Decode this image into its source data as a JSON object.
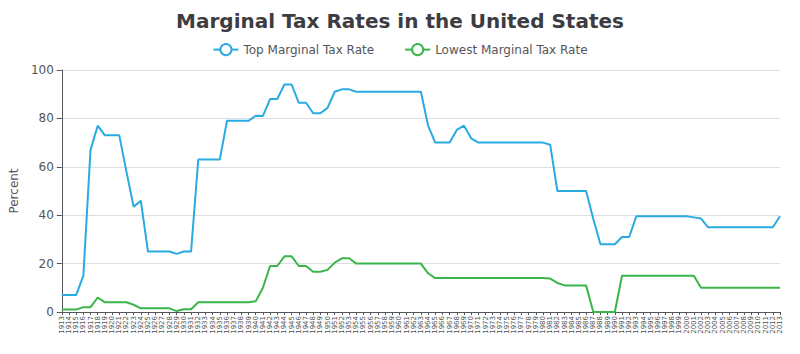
{
  "chart_data": {
    "type": "line",
    "title": "Marginal Tax Rates in the United States",
    "y_label": "Percent",
    "x": [
      1913,
      1914,
      1915,
      1916,
      1917,
      1918,
      1919,
      1920,
      1921,
      1922,
      1923,
      1924,
      1925,
      1926,
      1927,
      1928,
      1929,
      1930,
      1931,
      1932,
      1933,
      1934,
      1935,
      1936,
      1937,
      1938,
      1939,
      1940,
      1941,
      1942,
      1943,
      1944,
      1945,
      1946,
      1947,
      1948,
      1949,
      1950,
      1951,
      1952,
      1953,
      1954,
      1955,
      1956,
      1957,
      1958,
      1959,
      1960,
      1961,
      1962,
      1963,
      1964,
      1965,
      1966,
      1967,
      1968,
      1969,
      1970,
      1971,
      1972,
      1973,
      1974,
      1975,
      1976,
      1977,
      1978,
      1979,
      1980,
      1981,
      1982,
      1983,
      1984,
      1985,
      1986,
      1987,
      1988,
      1989,
      1990,
      1991,
      1992,
      1993,
      1994,
      1995,
      1996,
      1997,
      1998,
      1999,
      2000,
      2001,
      2002,
      2003,
      2004,
      2005,
      2006,
      2007,
      2008,
      2009,
      2010,
      2011,
      2012,
      2013
    ],
    "series": [
      {
        "name": "Top Marginal Tax Rate",
        "color": "#29ABE2",
        "values": [
          7,
          7,
          7,
          15,
          67,
          77,
          73,
          73,
          73,
          58,
          43.5,
          46,
          25,
          25,
          25,
          25,
          24,
          25,
          25,
          63,
          63,
          63,
          63,
          79,
          79,
          79,
          79,
          81.1,
          81,
          88,
          88,
          94,
          94,
          86.45,
          86.45,
          82.13,
          82.13,
          84.36,
          91,
          92,
          92,
          91,
          91,
          91,
          91,
          91,
          91,
          91,
          91,
          91,
          91,
          77,
          70,
          70,
          70,
          75.25,
          77,
          71.75,
          70,
          70,
          70,
          70,
          70,
          70,
          70,
          70,
          70,
          70,
          69.125,
          50,
          50,
          50,
          50,
          50,
          38.5,
          28,
          28,
          28,
          31,
          31,
          39.6,
          39.6,
          39.6,
          39.6,
          39.6,
          39.6,
          39.6,
          39.6,
          39.1,
          38.6,
          35,
          35,
          35,
          35,
          35,
          35,
          35,
          35,
          35,
          35,
          39.6
        ]
      },
      {
        "name": "Lowest Marginal Tax Rate",
        "color": "#39B54A",
        "values": [
          1,
          1,
          1,
          2,
          2,
          6,
          4,
          4,
          4,
          4,
          3,
          1.5,
          1.5,
          1.5,
          1.5,
          1.5,
          0.375,
          1.125,
          1.125,
          4,
          4,
          4,
          4,
          4,
          4,
          4,
          4,
          4.4,
          10,
          19,
          19,
          23,
          23,
          19,
          19,
          16.6,
          16.6,
          17.4,
          20.4,
          22.2,
          22.2,
          20,
          20,
          20,
          20,
          20,
          20,
          20,
          20,
          20,
          20,
          16,
          14,
          14,
          14,
          14,
          14,
          14,
          14,
          14,
          14,
          14,
          14,
          14,
          14,
          14,
          14,
          14,
          13.825,
          12,
          11,
          11,
          11,
          11,
          0,
          0,
          0,
          0,
          15,
          15,
          15,
          15,
          15,
          15,
          15,
          15,
          15,
          15,
          15,
          10,
          10,
          10,
          10,
          10,
          10,
          10,
          10,
          10,
          10,
          10,
          10
        ]
      }
    ],
    "xlim": [
      1913,
      2013
    ],
    "xticks": [
      1913,
      1914,
      1915,
      1916,
      1917,
      1918,
      1919,
      1920,
      1921,
      1922,
      1923,
      1924,
      1925,
      1926,
      1927,
      1928,
      1929,
      1930,
      1931,
      1932,
      1933,
      1934,
      1935,
      1936,
      1937,
      1938,
      1939,
      1940,
      1941,
      1942,
      1943,
      1944,
      1945,
      1946,
      1947,
      1948,
      1949,
      1950,
      1951,
      1952,
      1953,
      1954,
      1955,
      1956,
      1957,
      1958,
      1959,
      1960,
      1961,
      1962,
      1963,
      1964,
      1965,
      1966,
      1967,
      1968,
      1969,
      1970,
      1971,
      1972,
      1973,
      1974,
      1975,
      1976,
      1977,
      1978,
      1979,
      1980,
      1981,
      1982,
      1983,
      1984,
      1985,
      1986,
      1987,
      1988,
      1989,
      1990,
      1991,
      1992,
      1993,
      1994,
      1995,
      1996,
      1997,
      1998,
      1999,
      2000,
      2001,
      2002,
      2003,
      2004,
      2005,
      2006,
      2007,
      2008,
      2009,
      2010,
      2011,
      2012,
      2013
    ],
    "ylim": [
      0,
      100
    ],
    "yticks": [
      0,
      20,
      40,
      60,
      80,
      100
    ],
    "grid": true,
    "legend": "top"
  }
}
